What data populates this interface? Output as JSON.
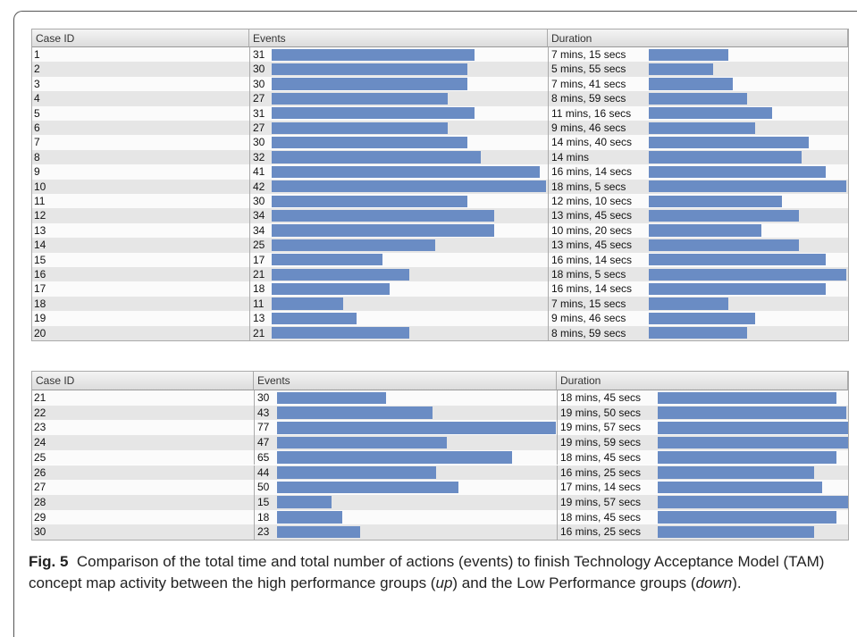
{
  "tables": [
    {
      "columns": [
        "Case ID",
        "Events",
        "Duration"
      ],
      "rows": [
        [
          1,
          31,
          {
            "value": 435,
            "label": "7 mins, 15 secs"
          }
        ],
        [
          2,
          30,
          {
            "value": 355,
            "label": "5 mins, 55 secs"
          }
        ],
        [
          3,
          30,
          {
            "value": 461,
            "label": "7 mins, 41 secs"
          }
        ],
        [
          4,
          27,
          {
            "value": 539,
            "label": "8 mins, 59 secs"
          }
        ],
        [
          5,
          31,
          {
            "value": 676,
            "label": "11 mins, 16 secs"
          }
        ],
        [
          6,
          27,
          {
            "value": 586,
            "label": "9 mins, 46 secs"
          }
        ],
        [
          7,
          30,
          {
            "value": 880,
            "label": "14 mins, 40 secs"
          }
        ],
        [
          8,
          32,
          {
            "value": 840,
            "label": "14 mins"
          }
        ],
        [
          9,
          41,
          {
            "value": 974,
            "label": "16 mins, 14 secs"
          }
        ],
        [
          10,
          42,
          {
            "value": 1085,
            "label": "18 mins, 5 secs"
          }
        ],
        [
          11,
          30,
          {
            "value": 730,
            "label": "12 mins, 10 secs"
          }
        ],
        [
          12,
          34,
          {
            "value": 825,
            "label": "13 mins, 45 secs"
          }
        ],
        [
          13,
          34,
          {
            "value": 620,
            "label": "10 mins, 20 secs"
          }
        ],
        [
          14,
          25,
          {
            "value": 825,
            "label": "13 mins, 45 secs"
          }
        ],
        [
          15,
          17,
          {
            "value": 974,
            "label": "16 mins, 14 secs"
          }
        ],
        [
          16,
          21,
          {
            "value": 1085,
            "label": "18 mins, 5 secs"
          }
        ],
        [
          17,
          18,
          {
            "value": 974,
            "label": "16 mins, 14 secs"
          }
        ],
        [
          18,
          11,
          {
            "value": 435,
            "label": "7 mins, 15 secs"
          }
        ],
        [
          19,
          13,
          {
            "value": 586,
            "label": "9 mins, 46 secs"
          }
        ],
        [
          20,
          21,
          {
            "value": 539,
            "label": "8 mins, 59 secs"
          }
        ]
      ]
    },
    {
      "columns": [
        "Case ID",
        "Events",
        "Duration"
      ],
      "rows": [
        [
          21,
          30,
          {
            "value": 1125,
            "label": "18 mins, 45 secs"
          }
        ],
        [
          22,
          43,
          {
            "value": 1190,
            "label": "19 mins, 50 secs"
          }
        ],
        [
          23,
          77,
          {
            "value": 1197,
            "label": "19 mins, 57 secs"
          }
        ],
        [
          24,
          47,
          {
            "value": 1199,
            "label": "19 mins, 59 secs"
          }
        ],
        [
          25,
          65,
          {
            "value": 1125,
            "label": "18 mins, 45 secs"
          }
        ],
        [
          26,
          44,
          {
            "value": 985,
            "label": "16 mins, 25 secs"
          }
        ],
        [
          27,
          50,
          {
            "value": 1034,
            "label": "17 mins, 14 secs"
          }
        ],
        [
          28,
          15,
          {
            "value": 1197,
            "label": "19 mins, 57 secs"
          }
        ],
        [
          29,
          18,
          {
            "value": 1125,
            "label": "18 mins, 45 secs"
          }
        ],
        [
          30,
          23,
          {
            "value": 985,
            "label": "16 mins, 25 secs"
          }
        ]
      ]
    }
  ],
  "caption": {
    "label": "Fig. 5",
    "parts": [
      "Comparison of the total time and total number of actions (events) to finish Technology Acceptance Model (TAM) concept map activity between the high performance groups (",
      "up",
      ") and the Low Performance groups (",
      "down",
      ")."
    ]
  }
}
